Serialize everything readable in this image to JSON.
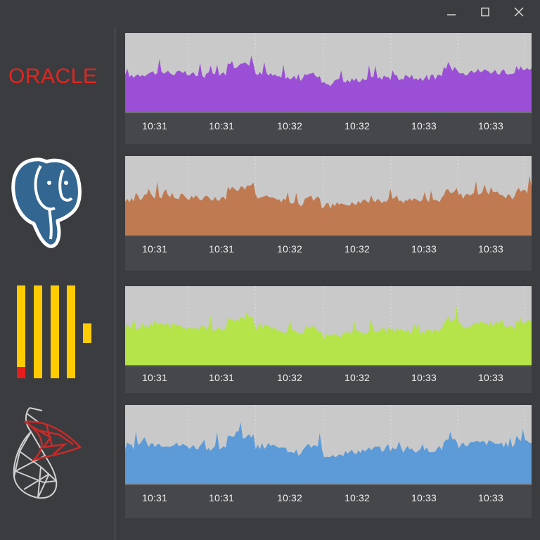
{
  "window": {
    "controls": [
      {
        "name": "minimize",
        "icon": "minimize-icon"
      },
      {
        "name": "maximize",
        "icon": "maximize-icon"
      },
      {
        "name": "close",
        "icon": "close-icon"
      }
    ]
  },
  "sidebar": {
    "databases": [
      {
        "name": "oracle",
        "label": "ORACLE",
        "color": "#e2261f"
      },
      {
        "name": "postgresql",
        "icon": "elephant-icon",
        "color": "#336791"
      },
      {
        "name": "clickhouse",
        "icon": "bars-icon",
        "color": "#ffcc00"
      },
      {
        "name": "sql-server",
        "icon": "sql-server-icon",
        "color": "#cc2927"
      }
    ]
  },
  "chart_data": [
    {
      "type": "area",
      "color": "#9b4fd6",
      "x_ticks": [
        "10:31",
        "10:31",
        "10:32",
        "10:32",
        "10:33",
        "10:33"
      ]
    },
    {
      "type": "area",
      "color": "#c07a52",
      "x_ticks": [
        "10:31",
        "10:31",
        "10:32",
        "10:32",
        "10:33",
        "10:33"
      ]
    },
    {
      "type": "area",
      "color": "#b4e34a",
      "x_ticks": [
        "10:31",
        "10:31",
        "10:32",
        "10:32",
        "10:33",
        "10:33"
      ]
    },
    {
      "type": "area",
      "color": "#5c9bd8",
      "x_ticks": [
        "10:31",
        "10:31",
        "10:32",
        "10:32",
        "10:33",
        "10:33"
      ]
    }
  ]
}
